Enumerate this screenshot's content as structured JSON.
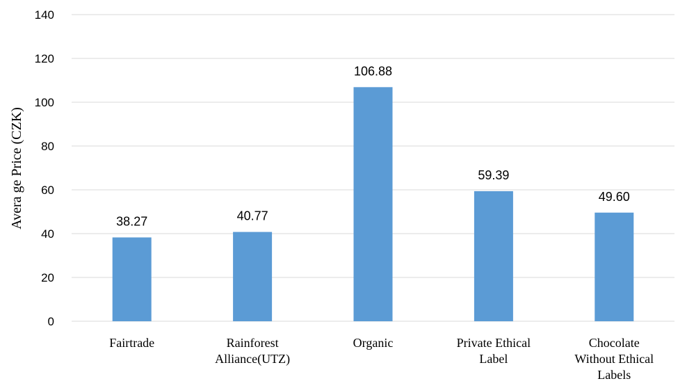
{
  "chart_data": {
    "type": "bar",
    "categories": [
      [
        "Fairtrade"
      ],
      [
        "Rainforest",
        "Alliance(UTZ)"
      ],
      [
        "Organic"
      ],
      [
        "Private Ethical",
        "Label"
      ],
      [
        "Chocolate",
        "Without Ethical",
        "Labels"
      ]
    ],
    "values": [
      38.27,
      40.77,
      106.88,
      59.39,
      49.6
    ],
    "data_labels": [
      "38.27",
      "40.77",
      "106.88",
      "59.39",
      "49.60"
    ],
    "title": "",
    "xlabel": "",
    "ylabel": "Avera ge Price (CZK)",
    "ylim": [
      0,
      140
    ],
    "yticks": [
      0,
      20,
      40,
      60,
      80,
      100,
      120,
      140
    ],
    "grid": true,
    "legend": "none",
    "colors": {
      "bar": "#5b9bd5",
      "grid": "#d9d9d9"
    }
  }
}
